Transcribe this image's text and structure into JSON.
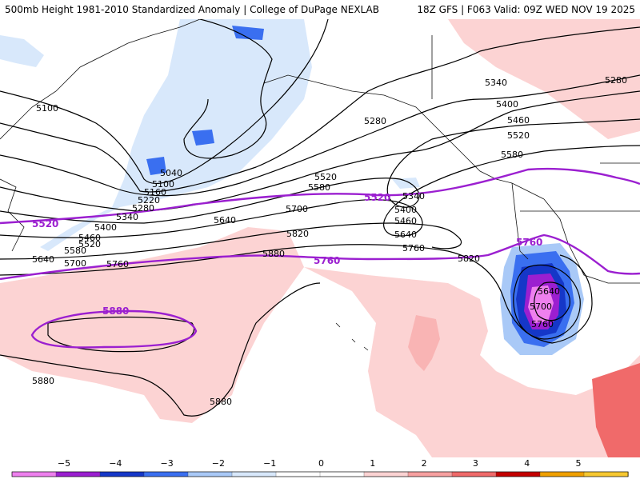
{
  "header": {
    "title_left": "500mb Height 1981-2010 Standardized Anomaly | College of DuPage NEXLAB",
    "title_right": "18Z GFS | F063 Valid: 09Z WED NOV 19 2025"
  },
  "colors": {
    "anomaly_scale": [
      "#ee80ee",
      "#9b1fd0",
      "#1537c8",
      "#3a6ff0",
      "#a9c9f7",
      "#d8e8fb",
      "#ffffff",
      "#ffffff",
      "#fcd3d3",
      "#f7a0a0",
      "#f06a6a",
      "#c40000",
      "#f0a000",
      "#f7c830"
    ],
    "height_contour": "#000000",
    "highlight_contour": "#9b1fd0"
  },
  "colorbar": {
    "ticks": [
      "−5",
      "−4",
      "−3",
      "−2",
      "−1",
      "0",
      "1",
      "2",
      "3",
      "4",
      "5"
    ]
  },
  "contour_labels": {
    "black": [
      "5100",
      "5040",
      "5100",
      "5160",
      "5220",
      "5280",
      "5340",
      "5400",
      "5460",
      "5520",
      "5580",
      "5640",
      "5700",
      "5760",
      "5280",
      "5340",
      "5400",
      "5460",
      "5520",
      "5580",
      "5520",
      "5580",
      "5640",
      "5700",
      "5340",
      "5400",
      "5460",
      "5640",
      "5760",
      "5820",
      "5880",
      "5820",
      "5640",
      "5700",
      "5760",
      "5880",
      "5880",
      "5280"
    ],
    "purple": [
      "5520",
      "5520",
      "5760",
      "5760",
      "5880"
    ]
  }
}
